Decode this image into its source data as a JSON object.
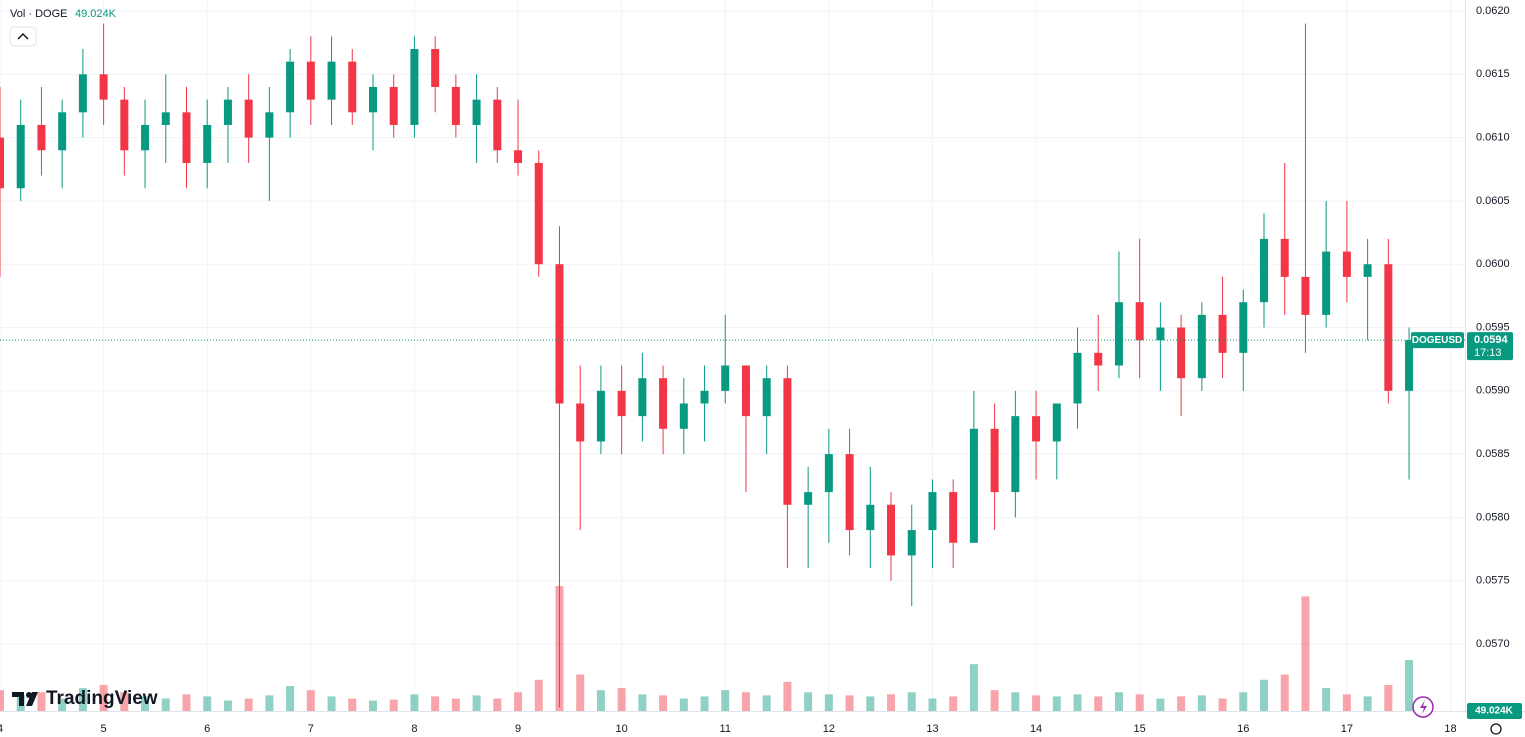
{
  "chart_data": {
    "type": "candlestick",
    "indicator": "Vol · DOGE",
    "volume_label": "49.024K",
    "brand": "TradingView",
    "symbol": "DOGEUSD",
    "last_price": {
      "value": 0.0594,
      "label": "0.0594"
    },
    "countdown": "17:13",
    "up_color": "#089981",
    "down_color": "#f23645",
    "grid": true,
    "xlim": [
      4,
      18.14
    ],
    "xticks": [
      4,
      5,
      6,
      7,
      8,
      9,
      10,
      11,
      12,
      13,
      14,
      15,
      16,
      17,
      18
    ],
    "ylim": [
      0.056471,
      0.062087
    ],
    "yticks": [
      {
        "value": 0.057,
        "label": "0.0570"
      },
      {
        "value": 0.0575,
        "label": "0.0575"
      },
      {
        "value": 0.058,
        "label": "0.0580"
      },
      {
        "value": 0.0585,
        "label": "0.0585"
      },
      {
        "value": 0.059,
        "label": "0.0590"
      },
      {
        "value": 0.0595,
        "label": "0.0595"
      },
      {
        "value": 0.06,
        "label": "0.0600"
      },
      {
        "value": 0.0605,
        "label": "0.0605"
      },
      {
        "value": 0.061,
        "label": "0.0610"
      },
      {
        "value": 0.0615,
        "label": "0.0615"
      },
      {
        "value": 0.062,
        "label": "0.0620"
      }
    ],
    "x": [
      4.0,
      4.2,
      4.4,
      4.6,
      4.8,
      5.0,
      5.2,
      5.4,
      5.6,
      5.8,
      6.0,
      6.2,
      6.4,
      6.6,
      6.8,
      7.0,
      7.2,
      7.4,
      7.6,
      7.8,
      8.0,
      8.2,
      8.4,
      8.6,
      8.8,
      9.0,
      9.2,
      9.4,
      9.6,
      9.8,
      10.0,
      10.2,
      10.4,
      10.6,
      10.8,
      11.0,
      11.2,
      11.4,
      11.6,
      11.8,
      12.0,
      12.2,
      12.4,
      12.6,
      12.8,
      13.0,
      13.2,
      13.4,
      13.6,
      13.8,
      14.0,
      14.2,
      14.4,
      14.6,
      14.8,
      15.0,
      15.2,
      15.4,
      15.6,
      15.8,
      16.0,
      16.2,
      16.4,
      16.6,
      16.8,
      17.0,
      17.2,
      17.4,
      17.6
    ],
    "open": [
      0.061,
      0.0606,
      0.0611,
      0.0609,
      0.0612,
      0.0615,
      0.0613,
      0.0609,
      0.0611,
      0.0612,
      0.0608,
      0.0611,
      0.0613,
      0.061,
      0.0612,
      0.0616,
      0.0613,
      0.0616,
      0.0612,
      0.0614,
      0.0611,
      0.0617,
      0.0614,
      0.0611,
      0.0613,
      0.0609,
      0.0608,
      0.06,
      0.0589,
      0.0586,
      0.059,
      0.0588,
      0.0591,
      0.0587,
      0.0589,
      0.059,
      0.0592,
      0.0588,
      0.0591,
      0.0581,
      0.0582,
      0.0585,
      0.0579,
      0.0581,
      0.0577,
      0.0579,
      0.0582,
      0.0578,
      0.0587,
      0.0582,
      0.0588,
      0.0586,
      0.0589,
      0.0593,
      0.0592,
      0.0597,
      0.0594,
      0.0595,
      0.0591,
      0.0596,
      0.0593,
      0.0597,
      0.0602,
      0.0599,
      0.0596,
      0.0601,
      0.0599,
      0.06,
      0.059
    ],
    "high": [
      0.0614,
      0.0613,
      0.0614,
      0.0613,
      0.0617,
      0.0619,
      0.0614,
      0.0613,
      0.0615,
      0.0614,
      0.0613,
      0.0614,
      0.0615,
      0.0614,
      0.0617,
      0.0618,
      0.0618,
      0.0617,
      0.0615,
      0.0615,
      0.0618,
      0.0618,
      0.0615,
      0.0615,
      0.0614,
      0.0613,
      0.0609,
      0.0603,
      0.0592,
      0.0592,
      0.0592,
      0.0593,
      0.0592,
      0.0591,
      0.0592,
      0.0596,
      0.0592,
      0.0592,
      0.0592,
      0.0584,
      0.0587,
      0.0587,
      0.0584,
      0.0582,
      0.0581,
      0.0583,
      0.0583,
      0.059,
      0.0589,
      0.059,
      0.059,
      0.0589,
      0.0595,
      0.0596,
      0.0601,
      0.0602,
      0.0597,
      0.0596,
      0.0597,
      0.0599,
      0.0598,
      0.0604,
      0.0608,
      0.0619,
      0.0605,
      0.0605,
      0.0602,
      0.0602,
      0.0595
    ],
    "low": [
      0.0599,
      0.0605,
      0.0607,
      0.0606,
      0.061,
      0.0611,
      0.0607,
      0.0606,
      0.0608,
      0.0606,
      0.0606,
      0.0608,
      0.0608,
      0.0605,
      0.061,
      0.0611,
      0.0611,
      0.0611,
      0.0609,
      0.061,
      0.061,
      0.0612,
      0.061,
      0.0608,
      0.0608,
      0.0607,
      0.0599,
      0.0565,
      0.0579,
      0.0585,
      0.0585,
      0.0586,
      0.0585,
      0.0585,
      0.0586,
      0.0589,
      0.0582,
      0.0585,
      0.0576,
      0.0576,
      0.0578,
      0.0577,
      0.0576,
      0.0575,
      0.0573,
      0.0576,
      0.0576,
      0.0578,
      0.0579,
      0.058,
      0.0583,
      0.0583,
      0.0587,
      0.059,
      0.0591,
      0.0591,
      0.059,
      0.0588,
      0.059,
      0.0591,
      0.059,
      0.0595,
      0.0596,
      0.0593,
      0.0595,
      0.0597,
      0.0594,
      0.0589,
      0.0583
    ],
    "close": [
      0.0606,
      0.0611,
      0.0609,
      0.0612,
      0.0615,
      0.0613,
      0.0609,
      0.0611,
      0.0612,
      0.0608,
      0.0611,
      0.0613,
      0.061,
      0.0612,
      0.0616,
      0.0613,
      0.0616,
      0.0612,
      0.0614,
      0.0611,
      0.0617,
      0.0614,
      0.0611,
      0.0613,
      0.0609,
      0.0608,
      0.06,
      0.0589,
      0.0586,
      0.059,
      0.0588,
      0.0591,
      0.0587,
      0.0589,
      0.059,
      0.0592,
      0.0588,
      0.0591,
      0.0581,
      0.0582,
      0.0585,
      0.0579,
      0.0581,
      0.0577,
      0.0579,
      0.0582,
      0.0578,
      0.0587,
      0.0582,
      0.0588,
      0.0586,
      0.0589,
      0.0593,
      0.0592,
      0.0597,
      0.0594,
      0.0595,
      0.0591,
      0.0596,
      0.0593,
      0.0597,
      0.0602,
      0.0599,
      0.0596,
      0.0601,
      0.0599,
      0.06,
      0.059,
      0.0594
    ],
    "volume": [
      20,
      15,
      18,
      12,
      22,
      25,
      18,
      14,
      12,
      16,
      14,
      10,
      12,
      15,
      24,
      20,
      14,
      12,
      10,
      11,
      16,
      14,
      12,
      15,
      12,
      18,
      30,
      120,
      35,
      20,
      22,
      16,
      15,
      12,
      14,
      20,
      18,
      15,
      28,
      18,
      16,
      15,
      14,
      16,
      18,
      12,
      14,
      45,
      20,
      18,
      15,
      14,
      16,
      14,
      18,
      16,
      12,
      14,
      15,
      12,
      18,
      30,
      35,
      110,
      22,
      16,
      14,
      25,
      49.024
    ]
  }
}
